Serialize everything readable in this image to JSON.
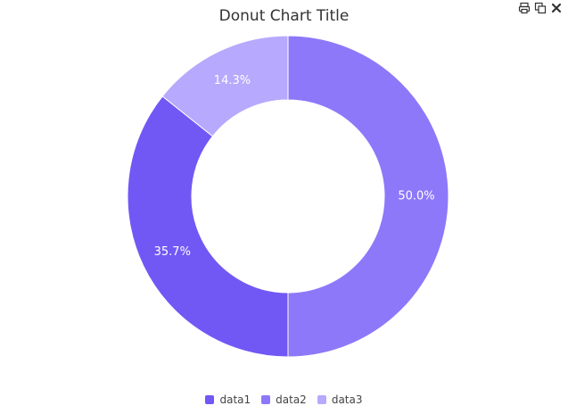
{
  "toolbar": {
    "icons": [
      "print-icon",
      "copy-icon",
      "close-icon"
    ]
  },
  "chart_data": {
    "type": "pie",
    "donut": true,
    "title": "Donut Chart Title",
    "series": [
      {
        "name": "data1",
        "value": 35.7,
        "label": "35.7%",
        "color": "#7158f5"
      },
      {
        "name": "data2",
        "value": 50.0,
        "label": "50.0%",
        "color": "#8d78fa"
      },
      {
        "name": "data3",
        "value": 14.3,
        "label": "14.3%",
        "color": "#b7a9fd"
      }
    ],
    "legend": "bottom"
  }
}
